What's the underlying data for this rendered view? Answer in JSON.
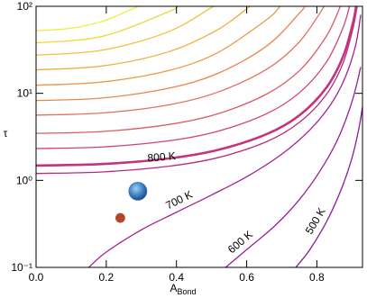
{
  "chart_data": {
    "type": "line",
    "xlabel": {
      "text": "A",
      "subscript": "Bond"
    },
    "ylabel": "τ",
    "xlim": [
      0,
      0.93
    ],
    "ylim": [
      0.1,
      100
    ],
    "log_y": true,
    "xticks": [
      {
        "value": 0,
        "label": "0.0"
      },
      {
        "value": 0.2,
        "label": "0.2"
      },
      {
        "value": 0.4,
        "label": "0.4"
      },
      {
        "value": 0.6,
        "label": "0.6"
      },
      {
        "value": 0.8,
        "label": "0.8"
      }
    ],
    "yticks": [
      {
        "value": 0.1,
        "label": "10⁻¹"
      },
      {
        "value": 1,
        "label": "10⁰"
      },
      {
        "value": 10,
        "label": "10¹"
      },
      {
        "value": 100,
        "label": "10²"
      }
    ],
    "series": [
      {
        "name": "500 K",
        "color": "#8b1a9e",
        "x": [
          0.74,
          0.78,
          0.83,
          0.87,
          0.9,
          0.92,
          0.93
        ],
        "values": [
          0.1,
          0.16,
          0.35,
          0.8,
          1.8,
          4,
          7
        ]
      },
      {
        "name": "600 K",
        "color": "#9a1d99",
        "x": [
          0.54,
          0.6,
          0.68,
          0.75,
          0.81,
          0.86,
          0.9,
          0.925
        ],
        "values": [
          0.1,
          0.16,
          0.3,
          0.6,
          1.3,
          3,
          8,
          20
        ]
      },
      {
        "name": "700 K",
        "color": "#a8208f",
        "x": [
          0.15,
          0.2,
          0.3,
          0.4,
          0.5,
          0.6,
          0.7,
          0.78,
          0.84,
          0.88,
          0.91,
          0.925
        ],
        "values": [
          0.1,
          0.15,
          0.27,
          0.43,
          0.68,
          1.1,
          2.0,
          3.8,
          7.5,
          15,
          35,
          80
        ]
      },
      {
        "name": "800 K",
        "color": "#b82a85",
        "x": [
          0,
          0.188,
          0.376,
          0.517,
          0.658,
          0.752,
          0.827,
          0.874,
          0.902,
          0.915
        ],
        "values": [
          1.2,
          1.25,
          1.45,
          1.82,
          2.8,
          4.7,
          9.7,
          22,
          54,
          100
        ]
      },
      {
        "color": "#c4347c",
        "linewidth": 2.6,
        "x": [
          0,
          0.188,
          0.376,
          0.517,
          0.658,
          0.752,
          0.827,
          0.874,
          0.902,
          0.912
        ],
        "values": [
          1.48,
          1.54,
          1.78,
          2.23,
          3.41,
          5.66,
          11.6,
          26,
          62.5,
          100
        ]
      },
      {
        "color": "#d2446f",
        "x": [
          0,
          0.188,
          0.376,
          0.517,
          0.658,
          0.752,
          0.827,
          0.874,
          0.893
        ],
        "values": [
          2.32,
          2.42,
          2.84,
          3.66,
          5.86,
          10.3,
          22.8,
          56,
          100
        ]
      },
      {
        "color": "#dc5a66",
        "x": [
          0,
          0.188,
          0.376,
          0.517,
          0.658,
          0.752,
          0.827,
          0.867
        ],
        "values": [
          3.47,
          3.64,
          4.37,
          5.81,
          9.86,
          18.5,
          45.3,
          100
        ]
      },
      {
        "color": "#e4705a",
        "x": [
          0,
          0.188,
          0.376,
          0.517,
          0.658,
          0.752,
          0.821
        ],
        "values": [
          5.62,
          5.94,
          7.35,
          10.3,
          19,
          39.8,
          100
        ]
      },
      {
        "color": "#ea8450",
        "x": [
          0,
          0.188,
          0.376,
          0.517,
          0.658,
          0.752,
          0.765
        ],
        "values": [
          8.26,
          8.83,
          11.4,
          16.9,
          35.2,
          84.9,
          100
        ]
      },
      {
        "color": "#ee9848",
        "x": [
          0,
          0.188,
          0.376,
          0.517,
          0.658,
          0.695
        ],
        "values": [
          12.4,
          13.5,
          18.2,
          29.3,
          70.8,
          100
        ]
      },
      {
        "color": "#f0ad42",
        "x": [
          0,
          0.188,
          0.376,
          0.517,
          0.609
        ],
        "values": [
          18.6,
          20.6,
          29.9,
          53.7,
          100
        ]
      },
      {
        "color": "#f2c23c",
        "x": [
          0,
          0.188,
          0.376,
          0.505
        ],
        "values": [
          27.5,
          31.3,
          50.8,
          100
        ]
      },
      {
        "color": "#f1d63a",
        "x": [
          0,
          0.188,
          0.376,
          0.403
        ],
        "values": [
          38,
          45.1,
          86.1,
          100
        ]
      },
      {
        "color": "#eeee3a",
        "x": [
          0,
          0.094,
          0.188,
          0.291
        ],
        "values": [
          52.5,
          55.6,
          67,
          100
        ]
      }
    ],
    "markers": [
      {
        "x": 0.29,
        "y": 0.75,
        "color": "#3a78c0"
      },
      {
        "x": 0.24,
        "y": 0.37,
        "color": "#b5462a"
      }
    ]
  }
}
